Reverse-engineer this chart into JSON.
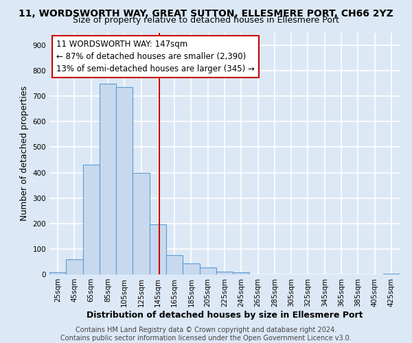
{
  "title": "11, WORDSWORTH WAY, GREAT SUTTON, ELLESMERE PORT, CH66 2YZ",
  "subtitle": "Size of property relative to detached houses in Ellesmere Port",
  "xlabel": "Distribution of detached houses by size in Ellesmere Port",
  "ylabel": "Number of detached properties",
  "bin_edges": [
    15,
    35,
    55,
    75,
    95,
    115,
    135,
    155,
    175,
    195,
    215,
    235,
    255,
    275,
    295,
    315,
    335,
    355,
    375,
    395,
    415,
    435
  ],
  "bin_labels": [
    "25sqm",
    "45sqm",
    "65sqm",
    "85sqm",
    "105sqm",
    "125sqm",
    "145sqm",
    "165sqm",
    "185sqm",
    "205sqm",
    "225sqm",
    "245sqm",
    "265sqm",
    "285sqm",
    "305sqm",
    "325sqm",
    "345sqm",
    "365sqm",
    "385sqm",
    "405sqm",
    "425sqm"
  ],
  "counts": [
    8,
    58,
    432,
    748,
    735,
    400,
    197,
    76,
    43,
    28,
    10,
    8,
    0,
    0,
    0,
    0,
    0,
    0,
    0,
    0,
    3
  ],
  "bar_color": "#c8d9ed",
  "bar_edge_color": "#5b9bd5",
  "property_size": 147,
  "vline_color": "#cc0000",
  "annotation_line1": "11 WORDSWORTH WAY: 147sqm",
  "annotation_line2": "← 87% of detached houses are smaller (2,390)",
  "annotation_line3": "13% of semi-detached houses are larger (345) →",
  "annotation_box_color": "#ffffff",
  "annotation_box_edge_color": "#cc0000",
  "ylim": [
    0,
    950
  ],
  "yticks": [
    0,
    100,
    200,
    300,
    400,
    500,
    600,
    700,
    800,
    900
  ],
  "footer1": "Contains HM Land Registry data © Crown copyright and database right 2024.",
  "footer2": "Contains public sector information licensed under the Open Government Licence v3.0.",
  "background_color": "#dce8f5",
  "plot_background_color": "#dce8f5",
  "grid_color": "#ffffff",
  "title_fontsize": 10,
  "subtitle_fontsize": 9,
  "axis_label_fontsize": 9,
  "tick_fontsize": 7.5,
  "annotation_fontsize": 8.5,
  "footer_fontsize": 7
}
